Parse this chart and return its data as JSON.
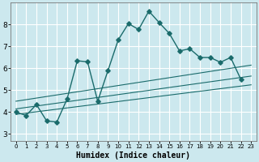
{
  "xlabel": "Humidex (Indice chaleur)",
  "xlim": [
    -0.5,
    23.5
  ],
  "ylim": [
    2.7,
    9.0
  ],
  "yticks": [
    3,
    4,
    5,
    6,
    7,
    8
  ],
  "xticks": [
    0,
    1,
    2,
    3,
    4,
    5,
    6,
    7,
    8,
    9,
    10,
    11,
    12,
    13,
    14,
    15,
    16,
    17,
    18,
    19,
    20,
    21,
    22,
    23
  ],
  "bg_color": "#cce8ee",
  "grid_color": "#ffffff",
  "line_color": "#1a6b6b",
  "main_line": {
    "x": [
      0,
      1,
      2,
      3,
      4,
      5,
      6,
      7,
      8,
      9,
      10,
      11,
      12,
      13,
      14,
      15,
      16,
      17,
      18,
      19,
      20,
      21,
      22
    ],
    "y": [
      4.0,
      3.85,
      4.35,
      3.6,
      3.55,
      4.6,
      6.35,
      6.3,
      4.5,
      5.9,
      7.3,
      8.05,
      7.78,
      8.62,
      8.1,
      7.6,
      6.8,
      6.9,
      6.5,
      6.5,
      6.28,
      6.5,
      5.5
    ]
  },
  "reg_lines": [
    {
      "x": [
        0,
        23
      ],
      "y": [
        3.9,
        5.25
      ]
    },
    {
      "x": [
        0,
        23
      ],
      "y": [
        4.15,
        5.65
      ]
    },
    {
      "x": [
        0,
        23
      ],
      "y": [
        4.5,
        6.15
      ]
    }
  ]
}
